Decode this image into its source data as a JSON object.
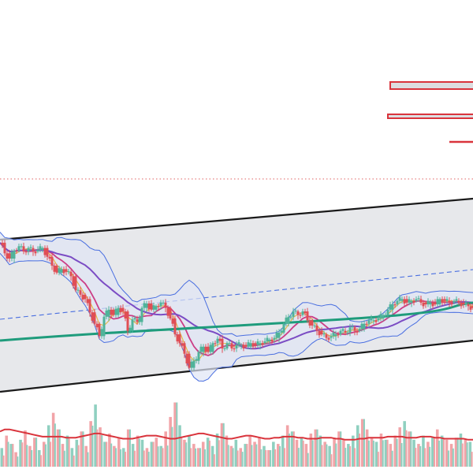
{
  "chart_data": {
    "type": "candlestick",
    "title": "",
    "xlabel": "",
    "ylabel": "",
    "grid": false,
    "legend": "none",
    "colors": {
      "up": "#4fb39a",
      "down": "#e04e55",
      "volume_up": "#8fd0c0",
      "volume_down": "#f2a4a8",
      "channel_fill": "#e6e7ea",
      "channel_line": "#1a1a1a",
      "channel_mid": "#4a6fe0",
      "bollinger": "#4a6fe0",
      "bollinger_fill": "#dfe6f5",
      "ma_short": "#e6b84a",
      "ma_mid": "#cc3d86",
      "ma_long": "#7b4cc4",
      "ma_trend": "#1f9c7c",
      "volume_ma": "#d9343c",
      "dotted_level": "#e06060",
      "marker_fill": "#dddde0",
      "marker_border": "#d9343c"
    },
    "price_series": {
      "name": "",
      "points": [
        [
          0,
          4
        ],
        [
          2,
          -8
        ],
        [
          4,
          -14
        ],
        [
          6,
          -5
        ],
        [
          8,
          0
        ],
        [
          10,
          -6
        ],
        [
          12,
          -2
        ],
        [
          14,
          -6
        ],
        [
          16,
          -4
        ],
        [
          18,
          -2
        ],
        [
          20,
          -12
        ],
        [
          22,
          -22
        ],
        [
          24,
          -30
        ],
        [
          26,
          -26
        ],
        [
          28,
          -29
        ],
        [
          30,
          -34
        ],
        [
          32,
          -50
        ],
        [
          34,
          -55
        ],
        [
          36,
          -60
        ],
        [
          38,
          -75
        ],
        [
          40,
          -88
        ],
        [
          42,
          -102
        ],
        [
          44,
          -80
        ],
        [
          46,
          -72
        ],
        [
          48,
          -78
        ],
        [
          50,
          -70
        ],
        [
          52,
          -74
        ],
        [
          54,
          -96
        ],
        [
          56,
          -83
        ],
        [
          58,
          -86
        ],
        [
          60,
          -70
        ],
        [
          62,
          -65
        ],
        [
          64,
          -72
        ],
        [
          66,
          -68
        ],
        [
          68,
          -64
        ],
        [
          70,
          -70
        ],
        [
          72,
          -82
        ],
        [
          74,
          -100
        ],
        [
          76,
          -110
        ],
        [
          78,
          -122
        ],
        [
          80,
          -138
        ],
        [
          82,
          -130
        ],
        [
          84,
          -120
        ],
        [
          86,
          -114
        ],
        [
          88,
          -120
        ],
        [
          90,
          -110
        ],
        [
          92,
          -105
        ],
        [
          94,
          -116
        ],
        [
          96,
          -110
        ],
        [
          98,
          -116
        ],
        [
          100,
          -112
        ],
        [
          102,
          -112
        ],
        [
          104,
          -114
        ],
        [
          106,
          -110
        ],
        [
          108,
          -112
        ],
        [
          110,
          -110
        ],
        [
          112,
          -108
        ],
        [
          114,
          -106
        ],
        [
          116,
          -104
        ],
        [
          118,
          -98
        ],
        [
          120,
          -88
        ],
        [
          122,
          -80
        ],
        [
          124,
          -74
        ],
        [
          126,
          -78
        ],
        [
          128,
          -74
        ],
        [
          130,
          -84
        ],
        [
          132,
          -90
        ],
        [
          134,
          -96
        ],
        [
          136,
          -100
        ],
        [
          138,
          -104
        ],
        [
          140,
          -102
        ],
        [
          142,
          -100
        ],
        [
          144,
          -96
        ],
        [
          146,
          -98
        ],
        [
          148,
          -92
        ],
        [
          150,
          -96
        ],
        [
          152,
          -94
        ],
        [
          154,
          -88
        ],
        [
          156,
          -84
        ],
        [
          158,
          -84
        ],
        [
          160,
          -82
        ],
        [
          162,
          -78
        ],
        [
          164,
          -72
        ],
        [
          166,
          -66
        ],
        [
          168,
          -62
        ],
        [
          170,
          -60
        ],
        [
          172,
          -64
        ],
        [
          174,
          -62
        ],
        [
          176,
          -60
        ],
        [
          178,
          -64
        ],
        [
          180,
          -66
        ],
        [
          182,
          -64
        ],
        [
          184,
          -66
        ],
        [
          186,
          -60
        ],
        [
          188,
          -62
        ],
        [
          190,
          -64
        ],
        [
          192,
          -62
        ],
        [
          194,
          -64
        ],
        [
          196,
          -66
        ],
        [
          198,
          -68
        ],
        [
          200,
          -70
        ]
      ]
    },
    "volume_series": {
      "name": "",
      "values": [
        18,
        30,
        22,
        14,
        26,
        35,
        20,
        28,
        16,
        24,
        40,
        52,
        36,
        22,
        30,
        18,
        26,
        34,
        20,
        44,
        60,
        38,
        24,
        32,
        20,
        28,
        18,
        36,
        22,
        30,
        26,
        18,
        24,
        28,
        20,
        34,
        48,
        62,
        40,
        26,
        30,
        22,
        18,
        24,
        28,
        20,
        32,
        42,
        30,
        20,
        26,
        18,
        22,
        30,
        24,
        28,
        20,
        16,
        24,
        22,
        30,
        40,
        34,
        26,
        28,
        22,
        32,
        36,
        30,
        24,
        20,
        28,
        34,
        26,
        22,
        30,
        40,
        46,
        36,
        28,
        24,
        32,
        26,
        22,
        30,
        38,
        44,
        34,
        26,
        22,
        30,
        24,
        28,
        36,
        30,
        26,
        22,
        28,
        32,
        26,
        24
      ]
    },
    "volume_ma": {
      "name": "",
      "values": [
        34,
        36,
        36,
        35,
        34,
        33,
        32,
        31,
        30,
        29,
        29,
        29,
        29,
        29,
        28,
        28,
        28,
        29,
        30,
        31,
        32,
        32,
        31,
        30,
        29,
        28,
        27,
        27,
        27,
        28,
        29,
        30,
        30,
        30,
        29,
        28,
        27,
        27,
        28,
        29,
        30,
        31,
        32,
        32,
        31,
        30,
        29,
        28,
        27,
        27,
        28,
        29,
        30,
        30,
        29,
        28,
        27,
        27,
        28,
        28,
        29,
        29,
        29,
        28,
        28,
        27,
        27,
        27,
        28,
        28,
        28,
        27,
        27,
        26,
        26,
        26,
        27,
        27,
        28,
        28,
        28,
        28,
        29,
        29,
        29,
        29,
        28,
        28,
        28,
        29,
        29,
        29,
        28,
        28,
        27,
        27,
        27,
        27,
        27,
        26,
        26
      ]
    },
    "horizontal_markers": [
      {
        "name": "",
        "style": "box"
      },
      {
        "name": "",
        "style": "box-thin"
      },
      {
        "name": "",
        "style": "line"
      }
    ]
  }
}
